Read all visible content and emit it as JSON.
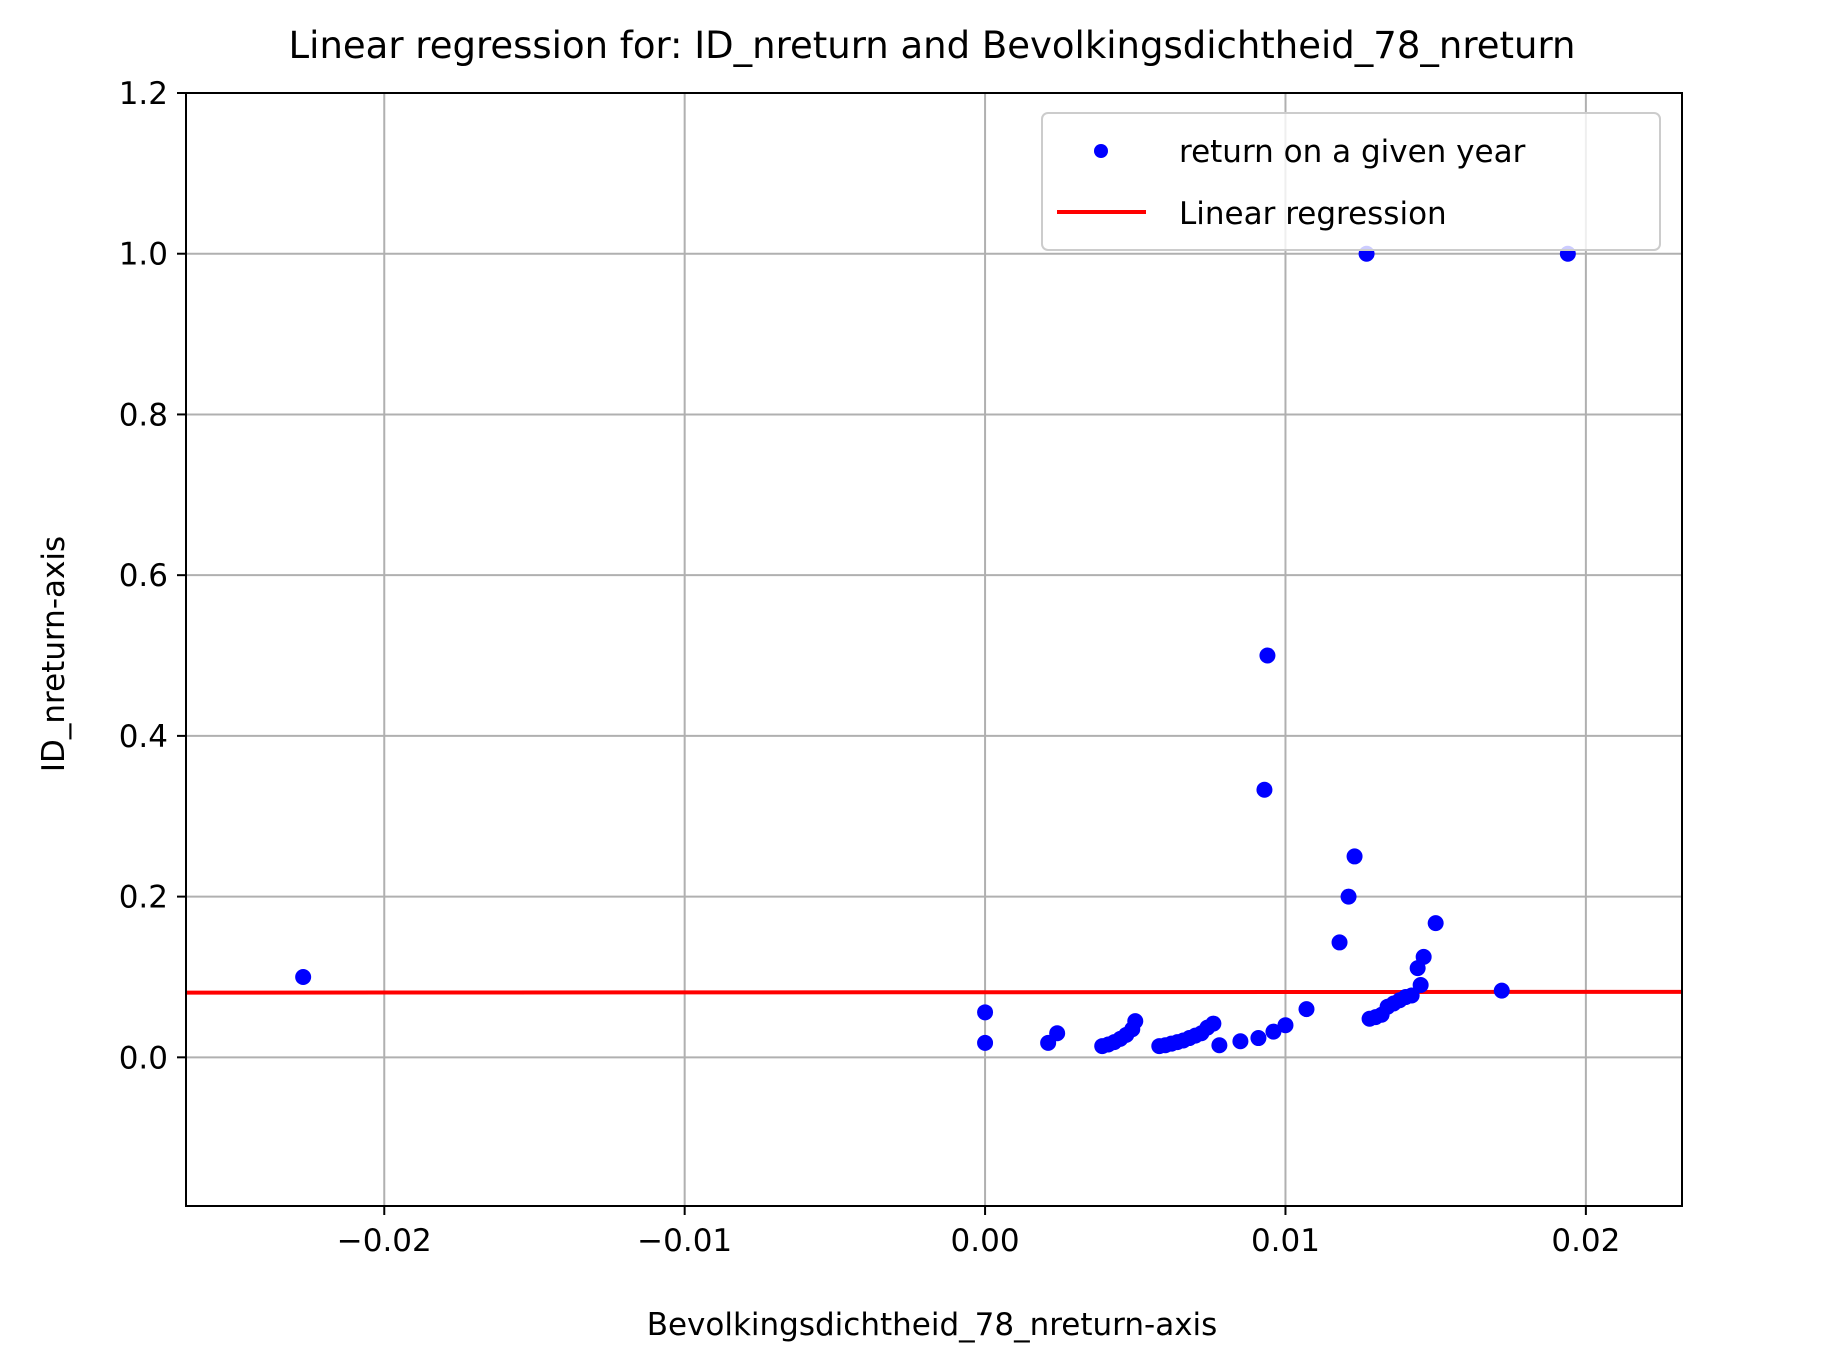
{
  "chart_data": {
    "type": "scatter",
    "title": "Linear regression for: ID_nreturn and Bevolkingsdichtheid_78_nreturn",
    "xlabel": "Bevolkingsdichtheid_78_nreturn-axis",
    "ylabel": "ID_nreturn-axis",
    "xlim": [
      -0.0266,
      0.0232
    ],
    "ylim": [
      -0.185,
      1.2
    ],
    "grid": true,
    "legend_position": "top-right",
    "x_ticks": [
      {
        "value": -0.02,
        "label": "−0.02"
      },
      {
        "value": -0.01,
        "label": "−0.01"
      },
      {
        "value": 0.0,
        "label": "0.00"
      },
      {
        "value": 0.01,
        "label": "0.01"
      },
      {
        "value": 0.02,
        "label": "0.02"
      }
    ],
    "y_ticks": [
      {
        "value": 0.0,
        "label": "0.0"
      },
      {
        "value": 0.2,
        "label": "0.2"
      },
      {
        "value": 0.4,
        "label": "0.4"
      },
      {
        "value": 0.6,
        "label": "0.6"
      },
      {
        "value": 0.8,
        "label": "0.8"
      },
      {
        "value": 1.0,
        "label": "1.0"
      },
      {
        "value": 1.2,
        "label": "1.2"
      }
    ],
    "series": [
      {
        "name": "return on a given year",
        "kind": "scatter",
        "color": "#0000ff",
        "points": [
          [
            -0.0227,
            0.1
          ],
          [
            0.0,
            0.056
          ],
          [
            0.0,
            0.018
          ],
          [
            0.0021,
            0.018
          ],
          [
            0.0024,
            0.03
          ],
          [
            0.0039,
            0.014
          ],
          [
            0.0041,
            0.016
          ],
          [
            0.0043,
            0.019
          ],
          [
            0.0045,
            0.023
          ],
          [
            0.0047,
            0.028
          ],
          [
            0.0049,
            0.035
          ],
          [
            0.005,
            0.045
          ],
          [
            0.0058,
            0.014
          ],
          [
            0.006,
            0.015
          ],
          [
            0.0062,
            0.017
          ],
          [
            0.0064,
            0.019
          ],
          [
            0.0066,
            0.021
          ],
          [
            0.0068,
            0.024
          ],
          [
            0.007,
            0.027
          ],
          [
            0.0072,
            0.03
          ],
          [
            0.0074,
            0.037
          ],
          [
            0.0076,
            0.042
          ],
          [
            0.0078,
            0.015
          ],
          [
            0.0085,
            0.02
          ],
          [
            0.0091,
            0.024
          ],
          [
            0.0093,
            0.333
          ],
          [
            0.0094,
            0.5
          ],
          [
            0.0096,
            0.032
          ],
          [
            0.01,
            0.04
          ],
          [
            0.0107,
            0.06
          ],
          [
            0.0118,
            0.143
          ],
          [
            0.0121,
            0.2
          ],
          [
            0.0123,
            0.25
          ],
          [
            0.0127,
            1.0
          ],
          [
            0.0128,
            0.048
          ],
          [
            0.013,
            0.05
          ],
          [
            0.0132,
            0.053
          ],
          [
            0.0134,
            0.063
          ],
          [
            0.0136,
            0.067
          ],
          [
            0.0138,
            0.071
          ],
          [
            0.014,
            0.075
          ],
          [
            0.0142,
            0.077
          ],
          [
            0.0144,
            0.111
          ],
          [
            0.0145,
            0.09
          ],
          [
            0.0146,
            0.125
          ],
          [
            0.015,
            0.167
          ],
          [
            0.0172,
            0.083
          ],
          [
            0.0194,
            1.0
          ]
        ]
      },
      {
        "name": "Linear regression",
        "kind": "line",
        "color": "#ff0000",
        "points": [
          [
            -0.0266,
            0.0805
          ],
          [
            0.0232,
            0.0815
          ]
        ]
      }
    ]
  }
}
